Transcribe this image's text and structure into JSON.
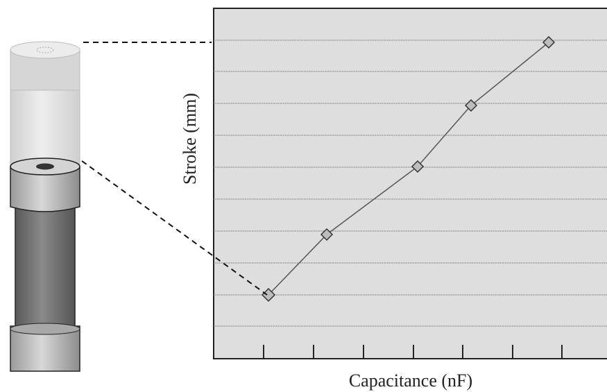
{
  "figure": {
    "y_axis_label": "Stroke (mm)",
    "x_axis_label": "Capacitance (nF)"
  }
}
